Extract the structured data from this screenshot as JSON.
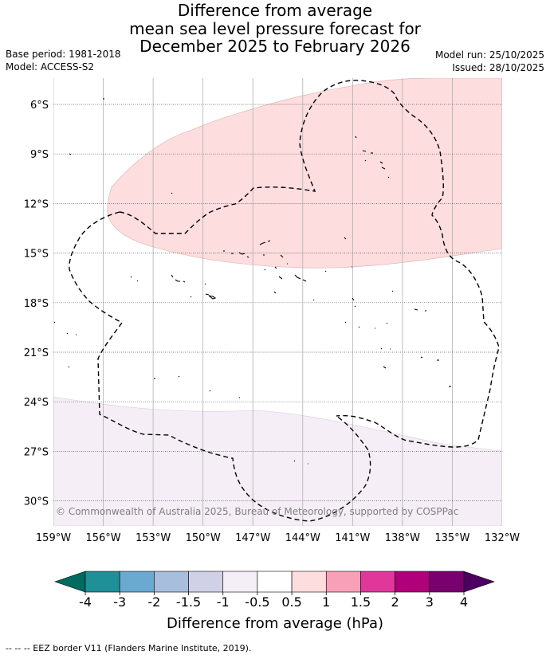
{
  "title": {
    "line1": "Difference from average",
    "line2": "mean sea level pressure forecast for",
    "line3": "December 2025 to February 2026"
  },
  "meta_left": {
    "base_period": "Base period: 1981-2018",
    "model": "Model: ACCESS-S2"
  },
  "meta_right": {
    "model_run": "Model run: 25/10/2025",
    "issued": "Issued: 28/10/2025"
  },
  "map": {
    "lon_range": [
      -159,
      -132
    ],
    "lat_range": [
      -32,
      -4.5
    ],
    "lon_ticks": [
      "159°W",
      "156°W",
      "153°W",
      "150°W",
      "147°W",
      "144°W",
      "141°W",
      "138°W",
      "135°W",
      "132°W"
    ],
    "lat_ticks": [
      "6°S",
      "9°S",
      "12°S",
      "15°S",
      "18°S",
      "21°S",
      "24°S",
      "27°S",
      "30°S"
    ],
    "colors": {
      "positive_fill": "#fddddd",
      "negative_fill": "#f5eef6",
      "grid": "#b0b0b0",
      "outline": "#000000"
    },
    "copyright": "© Commonwealth of Australia 2025, Bureau of Meteorology, supported by COSPPac"
  },
  "colorbar": {
    "label": "Difference from average (hPa)",
    "tick_labels": [
      "-4",
      "-3",
      "-2",
      "-1.5",
      "-1",
      "-0.5",
      "0.5",
      "1",
      "1.5",
      "2",
      "3",
      "4"
    ],
    "colors": [
      "#006b5e",
      "#1e9097",
      "#6aa9d0",
      "#a8bedd",
      "#d0d0e6",
      "#f4eef6",
      "#ffffff",
      "#fddddd",
      "#f8a0b8",
      "#e0389a",
      "#b0007a",
      "#7a0070",
      "#4d0060"
    ]
  },
  "footnote": "-- -- -- EEZ border V11 (Flanders Marine Institute, 2019)."
}
